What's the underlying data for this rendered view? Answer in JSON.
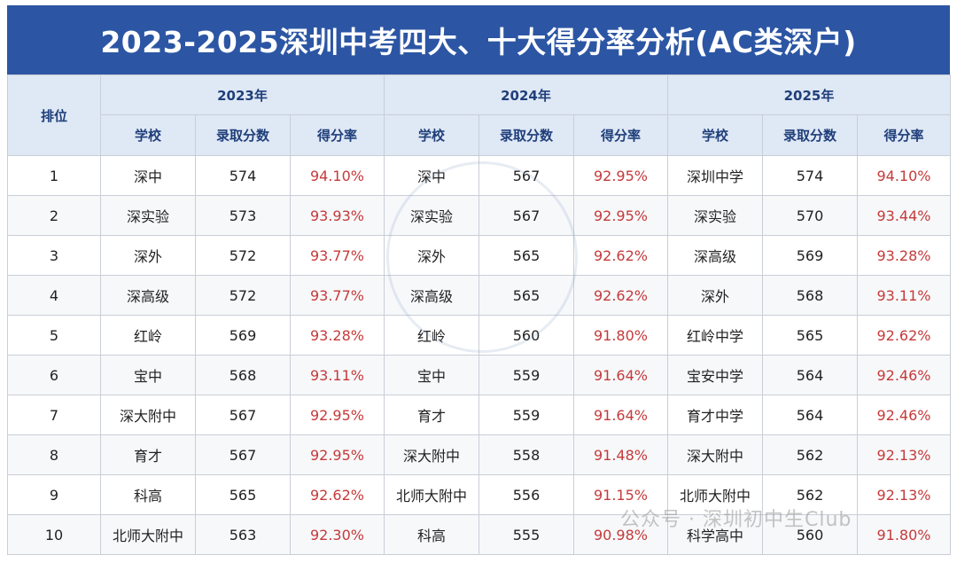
{
  "title": "2023-2025深圳中考四大、十大得分率分析(AC类深户)",
  "rank_header": "排位",
  "years": [
    "2023年",
    "2024年",
    "2025年"
  ],
  "sub_headers": [
    "学校",
    "录取分数",
    "得分率"
  ],
  "rows": [
    {
      "rank": "1",
      "y2023": {
        "school": "深中",
        "score": "574",
        "rate": "94.10%"
      },
      "y2024": {
        "school": "深中",
        "score": "567",
        "rate": "92.95%"
      },
      "y2025": {
        "school": "深圳中学",
        "score": "574",
        "rate": "94.10%"
      }
    },
    {
      "rank": "2",
      "y2023": {
        "school": "深实验",
        "score": "573",
        "rate": "93.93%"
      },
      "y2024": {
        "school": "深实验",
        "score": "567",
        "rate": "92.95%"
      },
      "y2025": {
        "school": "深实验",
        "score": "570",
        "rate": "93.44%"
      }
    },
    {
      "rank": "3",
      "y2023": {
        "school": "深外",
        "score": "572",
        "rate": "93.77%"
      },
      "y2024": {
        "school": "深外",
        "score": "565",
        "rate": "92.62%"
      },
      "y2025": {
        "school": "深高级",
        "score": "569",
        "rate": "93.28%"
      }
    },
    {
      "rank": "4",
      "y2023": {
        "school": "深高级",
        "score": "572",
        "rate": "93.77%"
      },
      "y2024": {
        "school": "深高级",
        "score": "565",
        "rate": "92.62%"
      },
      "y2025": {
        "school": "深外",
        "score": "568",
        "rate": "93.11%"
      }
    },
    {
      "rank": "5",
      "y2023": {
        "school": "红岭",
        "score": "569",
        "rate": "93.28%"
      },
      "y2024": {
        "school": "红岭",
        "score": "560",
        "rate": "91.80%"
      },
      "y2025": {
        "school": "红岭中学",
        "score": "565",
        "rate": "92.62%"
      }
    },
    {
      "rank": "6",
      "y2023": {
        "school": "宝中",
        "score": "568",
        "rate": "93.11%"
      },
      "y2024": {
        "school": "宝中",
        "score": "559",
        "rate": "91.64%"
      },
      "y2025": {
        "school": "宝安中学",
        "score": "564",
        "rate": "92.46%"
      }
    },
    {
      "rank": "7",
      "y2023": {
        "school": "深大附中",
        "score": "567",
        "rate": "92.95%"
      },
      "y2024": {
        "school": "育才",
        "score": "559",
        "rate": "91.64%"
      },
      "y2025": {
        "school": "育才中学",
        "score": "564",
        "rate": "92.46%"
      }
    },
    {
      "rank": "8",
      "y2023": {
        "school": "育才",
        "score": "567",
        "rate": "92.95%"
      },
      "y2024": {
        "school": "深大附中",
        "score": "558",
        "rate": "91.48%"
      },
      "y2025": {
        "school": "深大附中",
        "score": "562",
        "rate": "92.13%"
      }
    },
    {
      "rank": "9",
      "y2023": {
        "school": "科高",
        "score": "565",
        "rate": "92.62%"
      },
      "y2024": {
        "school": "北师大附中",
        "score": "556",
        "rate": "91.15%"
      },
      "y2025": {
        "school": "北师大附中",
        "score": "562",
        "rate": "92.13%"
      }
    },
    {
      "rank": "10",
      "y2023": {
        "school": "北师大附中",
        "score": "563",
        "rate": "92.30%"
      },
      "y2024": {
        "school": "科高",
        "score": "555",
        "rate": "90.98%"
      },
      "y2025": {
        "school": "科学高中",
        "score": "560",
        "rate": "91.80%"
      }
    }
  ],
  "watermark": "公众号 · 深圳初中生Club",
  "colors": {
    "banner": "#2c56a4",
    "rate_text": "#c53a3a",
    "header_bg": "#dfe8f5"
  }
}
